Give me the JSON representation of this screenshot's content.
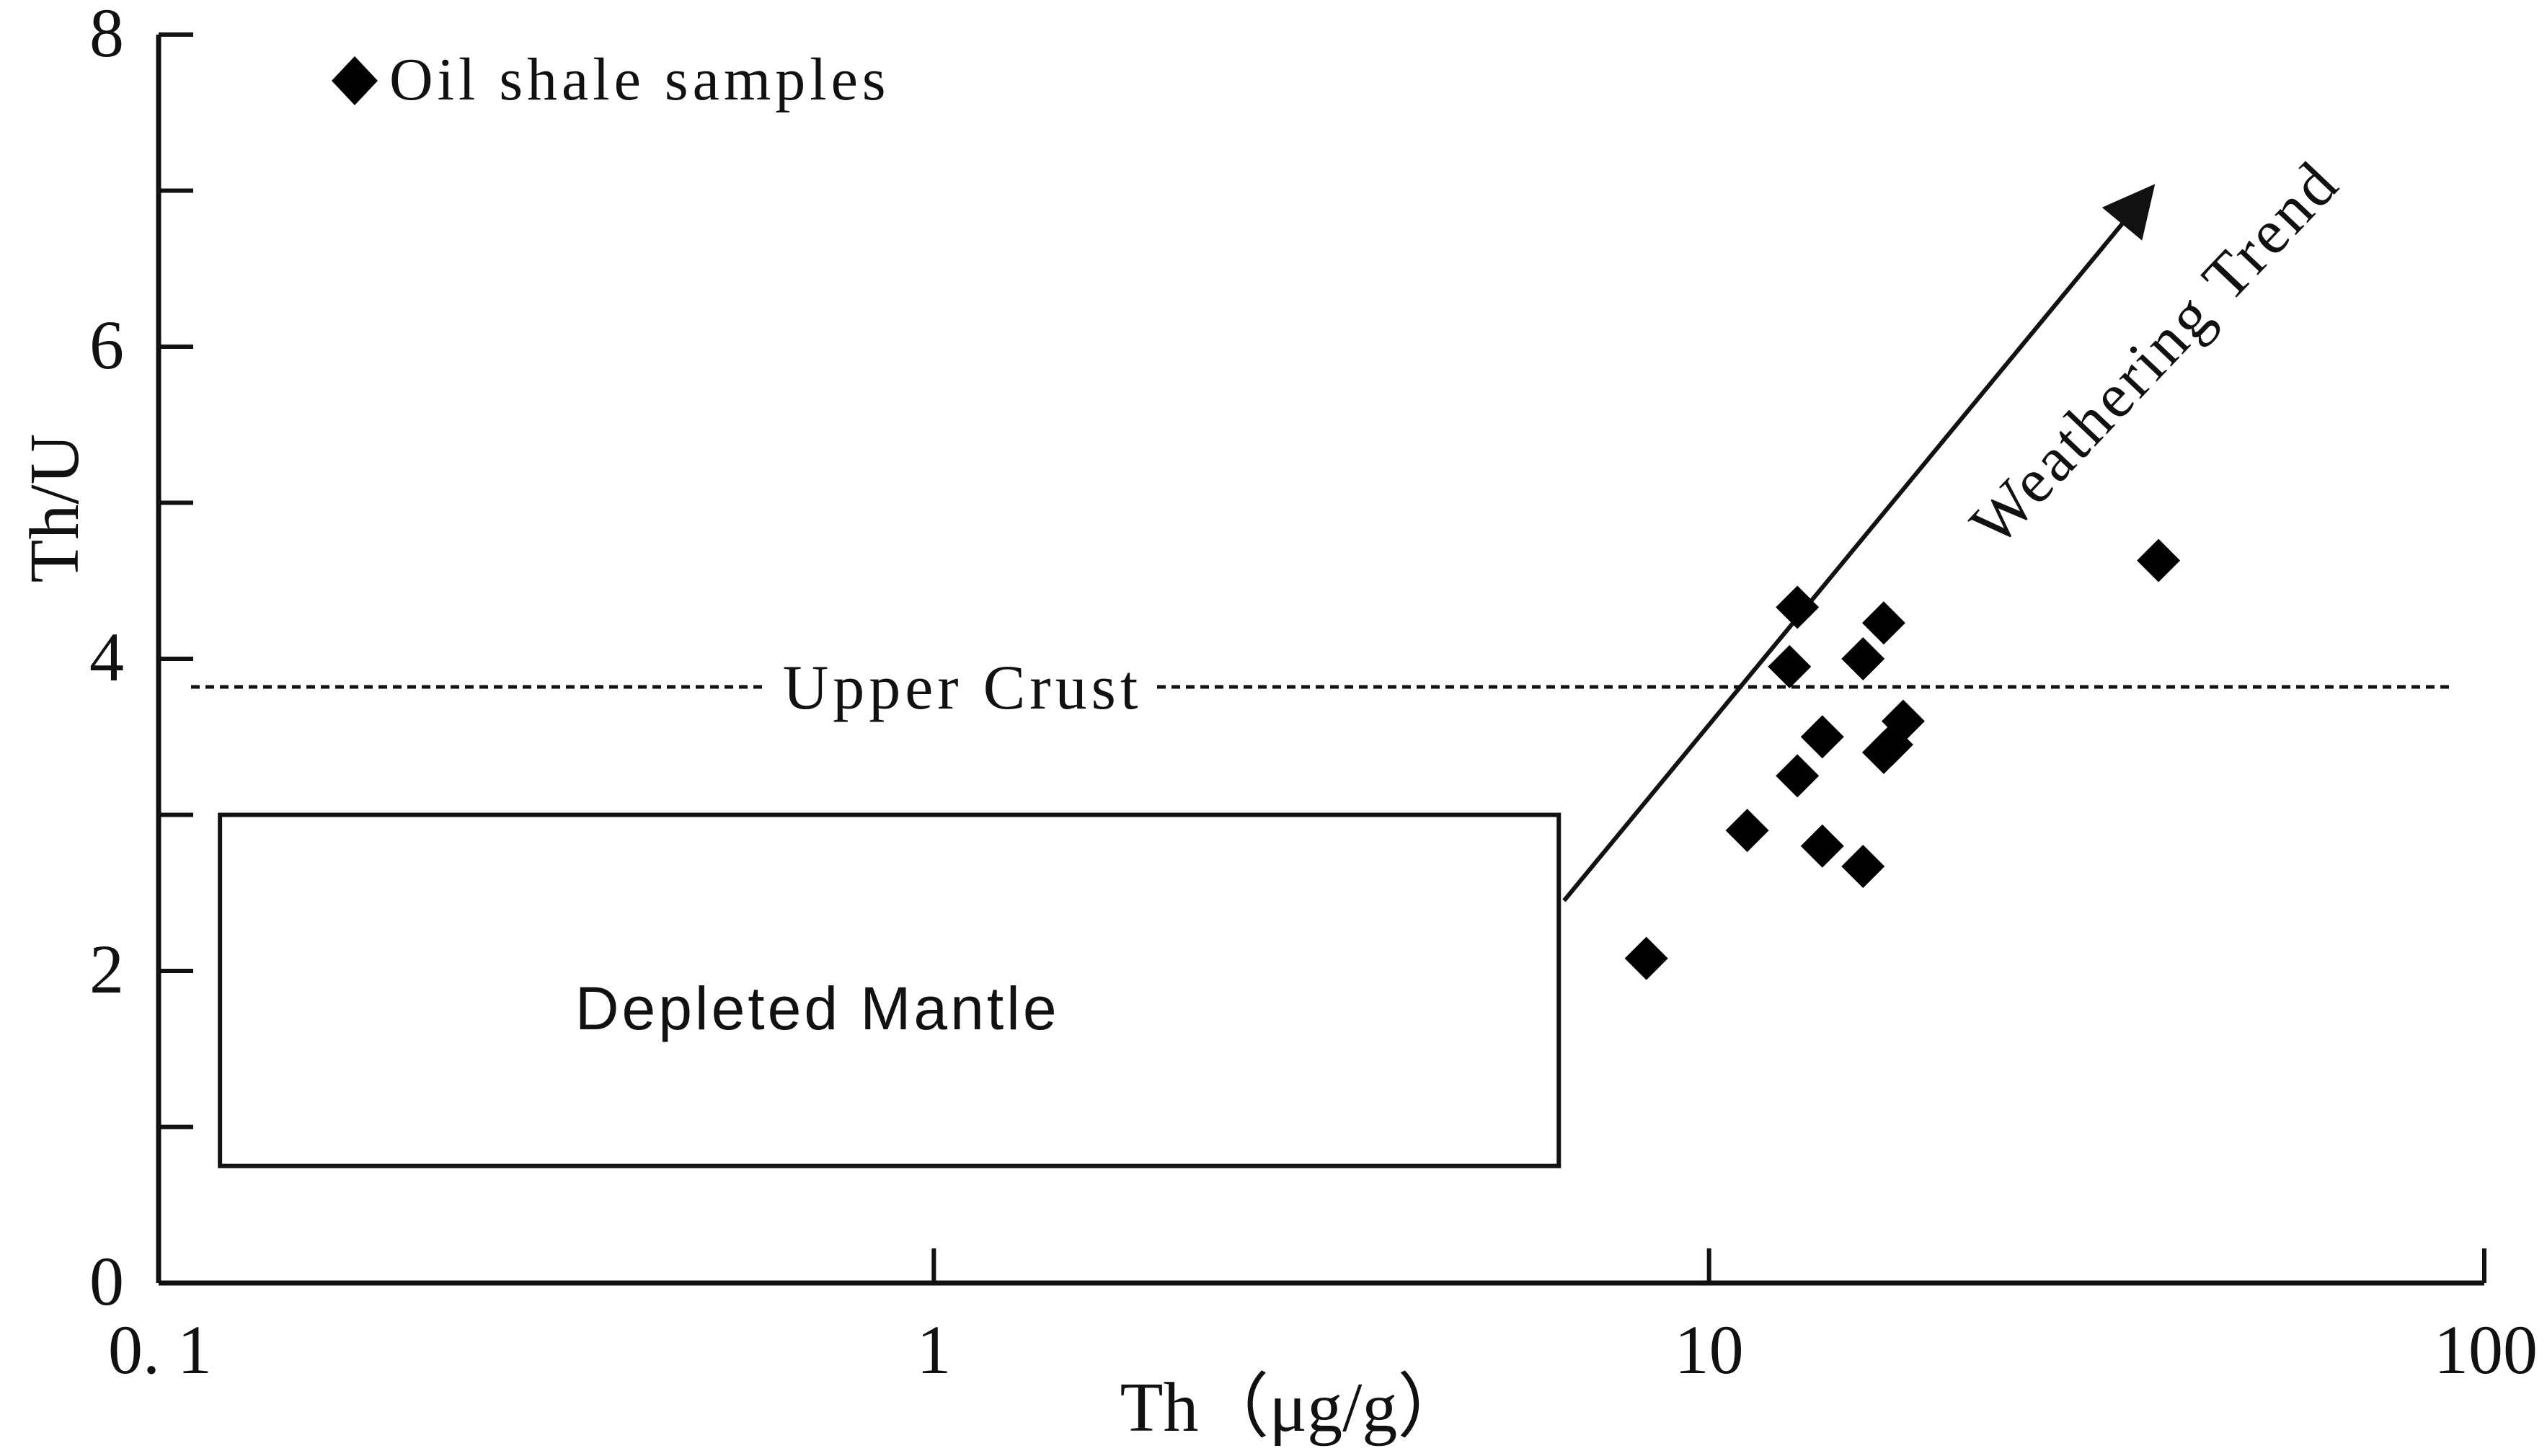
{
  "chart_data": {
    "type": "scatter",
    "xscale": "log",
    "xlim": [
      0.1,
      100
    ],
    "ylim": [
      0,
      8
    ],
    "xlabel": "Th（μg/g）",
    "ylabel": "Th/U",
    "x_ticks": [
      0.1,
      1,
      10,
      100
    ],
    "x_tick_labels": [
      "0. 1",
      "1",
      "10",
      "100"
    ],
    "y_ticks": [
      0,
      1,
      2,
      3,
      4,
      5,
      6,
      7,
      8
    ],
    "y_tick_labels": [
      "0",
      "",
      "2",
      "",
      "4",
      "",
      "6",
      "",
      "8"
    ],
    "grid": false,
    "legend": {
      "placement": "top-left",
      "entries": [
        {
          "label": "Oil shale samples",
          "marker": "diamond"
        }
      ]
    },
    "series": [
      {
        "name": "Oil shale samples",
        "marker": "diamond",
        "color": "#000000",
        "points": [
          [
            8.3,
            2.08
          ],
          [
            11.2,
            2.9
          ],
          [
            12.7,
            3.95
          ],
          [
            13.0,
            4.33
          ],
          [
            13.0,
            3.25
          ],
          [
            14.0,
            3.5
          ],
          [
            14.0,
            2.8
          ],
          [
            15.8,
            4.0
          ],
          [
            15.8,
            2.67
          ],
          [
            16.8,
            4.23
          ],
          [
            16.8,
            3.4
          ],
          [
            17.2,
            3.45
          ],
          [
            17.8,
            3.6
          ],
          [
            38.0,
            4.63
          ]
        ]
      }
    ],
    "reference_line": {
      "label": "Upper Crust",
      "y": 3.82,
      "style": "dotted"
    },
    "region": {
      "label": "Depleted Mantle",
      "x": [
        0.12,
        6.4
      ],
      "y": [
        0.75,
        3.0
      ]
    },
    "arrow": {
      "label": "Weathering Trend",
      "from": [
        6.5,
        2.45
      ],
      "to": [
        37.0,
        7.0
      ]
    }
  }
}
